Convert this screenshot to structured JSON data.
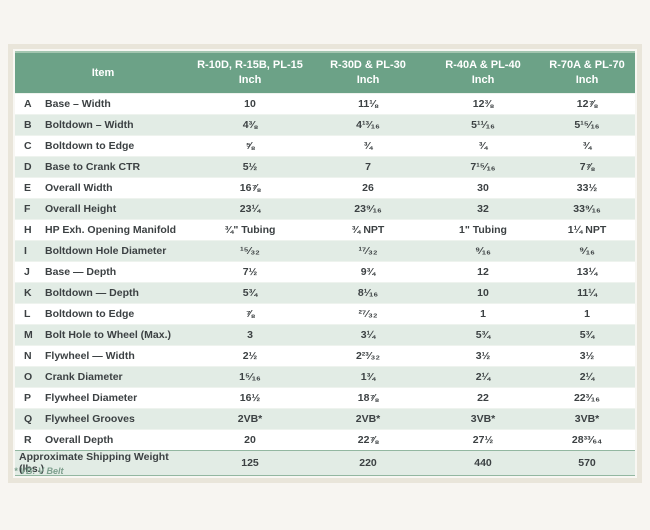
{
  "page": {
    "footnote": "* VB: V Belt"
  },
  "colors": {
    "header_green": "#6ca287",
    "header_top_edge": "#a3c6b0",
    "alt_row_green": "#e2ece5",
    "frame_beige": "#e9e5da",
    "footnote_green": "#7d9f8d",
    "text": "#3c4143"
  },
  "table": {
    "header": {
      "item_label": "Item",
      "columns": [
        {
          "model": "R-10D, R-15B, PL-15",
          "unit": "Inch"
        },
        {
          "model": "R-30D & PL-30",
          "unit": "Inch"
        },
        {
          "model": "R-40A & PL-40",
          "unit": "Inch"
        },
        {
          "model": "R-70A & PL-70",
          "unit": "Inch"
        }
      ]
    },
    "rows": [
      {
        "letter": "A",
        "item": "Base – Width",
        "values": [
          "10",
          "11⅛",
          "12⅜",
          "12⅞"
        ]
      },
      {
        "letter": "B",
        "item": "Boltdown – Width",
        "values": [
          "4⅜",
          "4¹³⁄₁₆",
          "5¹¹⁄₁₆",
          "5¹⁵⁄₁₆"
        ]
      },
      {
        "letter": "C",
        "item": "Boltdown to Edge",
        "values": [
          "⅝",
          "¾",
          "¾",
          "¾"
        ]
      },
      {
        "letter": "D",
        "item": "Base to Crank CTR",
        "values": [
          "5½",
          "7",
          "7¹⁵⁄₁₆",
          "7⅞"
        ]
      },
      {
        "letter": "E",
        "item": "Overall Width",
        "values": [
          "16⅞",
          "26",
          "30",
          "33½"
        ]
      },
      {
        "letter": "F",
        "item": "Overall Height",
        "values": [
          "23¼",
          "23⁹⁄₁₆",
          "32",
          "33⁹⁄₁₆"
        ]
      },
      {
        "letter": "H",
        "item": "HP Exh. Opening Manifold",
        "values": [
          "¾\" Tubing",
          "¾ NPT",
          "1\" Tubing",
          "1¼ NPT"
        ]
      },
      {
        "letter": "I",
        "item": "Boltdown Hole Diameter",
        "values": [
          "¹⁵⁄₃₂",
          "¹⁷⁄₃₂",
          "⁹⁄₁₆",
          "⁹⁄₁₆"
        ]
      },
      {
        "letter": "J",
        "item": "Base — Depth",
        "values": [
          "7½",
          "9¾",
          "12",
          "13¼"
        ]
      },
      {
        "letter": "K",
        "item": "Boltdown — Depth",
        "values": [
          "5¾",
          "8¹⁄₁₆",
          "10",
          "11¼"
        ]
      },
      {
        "letter": "L",
        "item": "Boltdown to Edge",
        "values": [
          "⅞",
          "²⁷⁄₃₂",
          "1",
          "1"
        ]
      },
      {
        "letter": "M",
        "item": "Bolt Hole to Wheel (Max.)",
        "values": [
          "3",
          "3¼",
          "5¾",
          "5¾"
        ]
      },
      {
        "letter": "N",
        "item": "Flywheel — Width",
        "values": [
          "2½",
          "2²³⁄₃₂",
          "3½",
          "3½"
        ]
      },
      {
        "letter": "O",
        "item": "Crank Diameter",
        "values": [
          "1⁵⁄₁₆",
          "1¾",
          "2¼",
          "2¼"
        ]
      },
      {
        "letter": "P",
        "item": "Flywheel Diameter",
        "values": [
          "16½",
          "18⅞",
          "22",
          "22³⁄₁₆"
        ]
      },
      {
        "letter": "Q",
        "item": "Flywheel Grooves",
        "values": [
          "2VB*",
          "2VB*",
          "3VB*",
          "3VB*"
        ]
      },
      {
        "letter": "R",
        "item": "Overall Depth",
        "values": [
          "20",
          "22⅞",
          "27½",
          "28³³⁄₆₄"
        ]
      }
    ],
    "footer_row": {
      "label": "Approximate Shipping Weight (lbs.)",
      "values": [
        "125",
        "220",
        "440",
        "570"
      ]
    }
  }
}
